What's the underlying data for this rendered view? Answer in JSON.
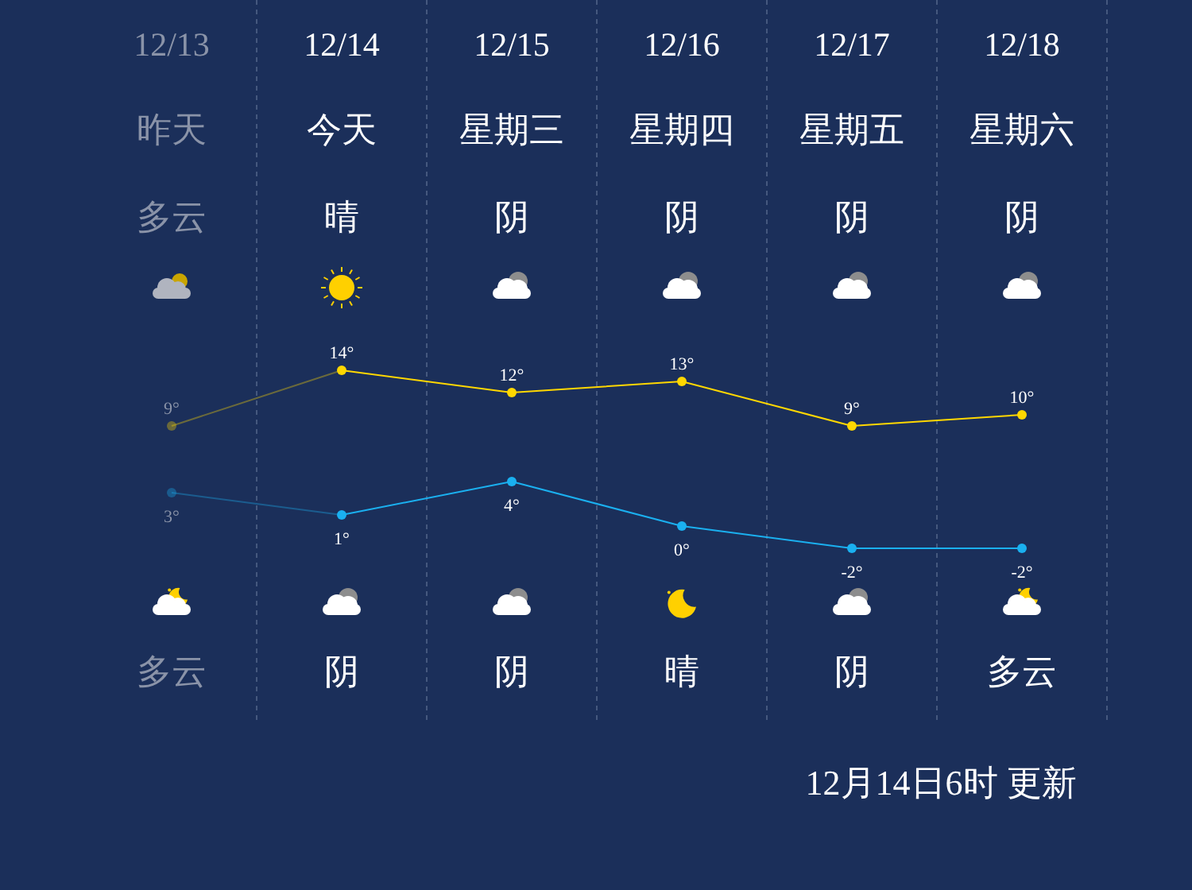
{
  "chart_data": {
    "type": "line",
    "categories": [
      "12/13",
      "12/14",
      "12/15",
      "12/16",
      "12/17",
      "12/18"
    ],
    "series": [
      {
        "color": "#ffd700",
        "values": [
          9,
          14,
          12,
          13,
          9,
          10
        ],
        "value_labels": [
          "9°",
          "14°",
          "12°",
          "13°",
          "9°",
          "10°"
        ]
      },
      {
        "color": "#1ab0f0",
        "values": [
          3,
          1,
          4,
          0,
          -2,
          -2
        ],
        "value_labels": [
          "3°",
          "1°",
          "4°",
          "0°",
          "-2°",
          "-2°"
        ]
      }
    ],
    "tick_labels": "x",
    "grid": "x",
    "marker": "circle",
    "line_style": "solid",
    "annotations": [
      "昨天",
      "多云",
      "多云",
      "今天",
      "晴",
      "阴",
      "星期三",
      "阴",
      "阴",
      "星期四",
      "阴",
      "晴",
      "星期五",
      "阴",
      "阴",
      "星期六",
      "阴",
      "多云",
      "12月14日6时 更新"
    ]
  }
}
